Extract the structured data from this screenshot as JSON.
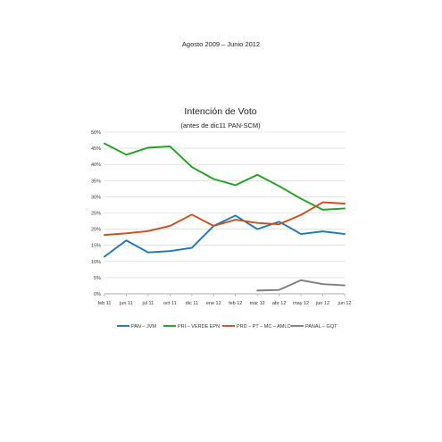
{
  "header": {
    "text": "Agosto 2009 – Junio 2012"
  },
  "chart_data": {
    "type": "line",
    "title": "Intención de Voto",
    "subtitle": "(antes de dic11 PAN-SCM)",
    "categories": [
      "feb 11",
      "jun 11",
      "jul 11",
      "oct 11",
      "dic 11",
      "ene 12",
      "feb 12",
      "mar 12",
      "abr 12",
      "may 12",
      "jun 12",
      "jun 12"
    ],
    "y_ticks": [
      "0%",
      "5%",
      "10%",
      "15%",
      "20%",
      "25%",
      "30%",
      "35%",
      "40%",
      "45%",
      "50%"
    ],
    "ylim": [
      0,
      50
    ],
    "grid": true,
    "legend_position": "bottom",
    "series": [
      {
        "name": "PAN – JVM",
        "color": "#1f77b4",
        "values": [
          11.5,
          16.5,
          12.8,
          13.2,
          14.2,
          21.0,
          24.2,
          20.0,
          22.3,
          18.5,
          19.3,
          18.5
        ]
      },
      {
        "name": "PRI – VERDE EPN",
        "color": "#22a022",
        "values": [
          46.5,
          43.0,
          45.2,
          45.6,
          39.2,
          35.5,
          33.6,
          36.8,
          33.3,
          29.4,
          26.0,
          26.4
        ]
      },
      {
        "name": "PRD – PT – MC – AMLO",
        "color": "#c8501e",
        "values": [
          18.2,
          18.7,
          19.4,
          21.0,
          24.5,
          21.0,
          22.9,
          21.9,
          21.5,
          24.4,
          28.3,
          27.9
        ]
      },
      {
        "name": "PANAL – GQT",
        "color": "#7f7f7f",
        "values": [
          null,
          null,
          null,
          null,
          null,
          null,
          null,
          1.0,
          1.2,
          4.2,
          3.0,
          2.6
        ]
      }
    ]
  }
}
